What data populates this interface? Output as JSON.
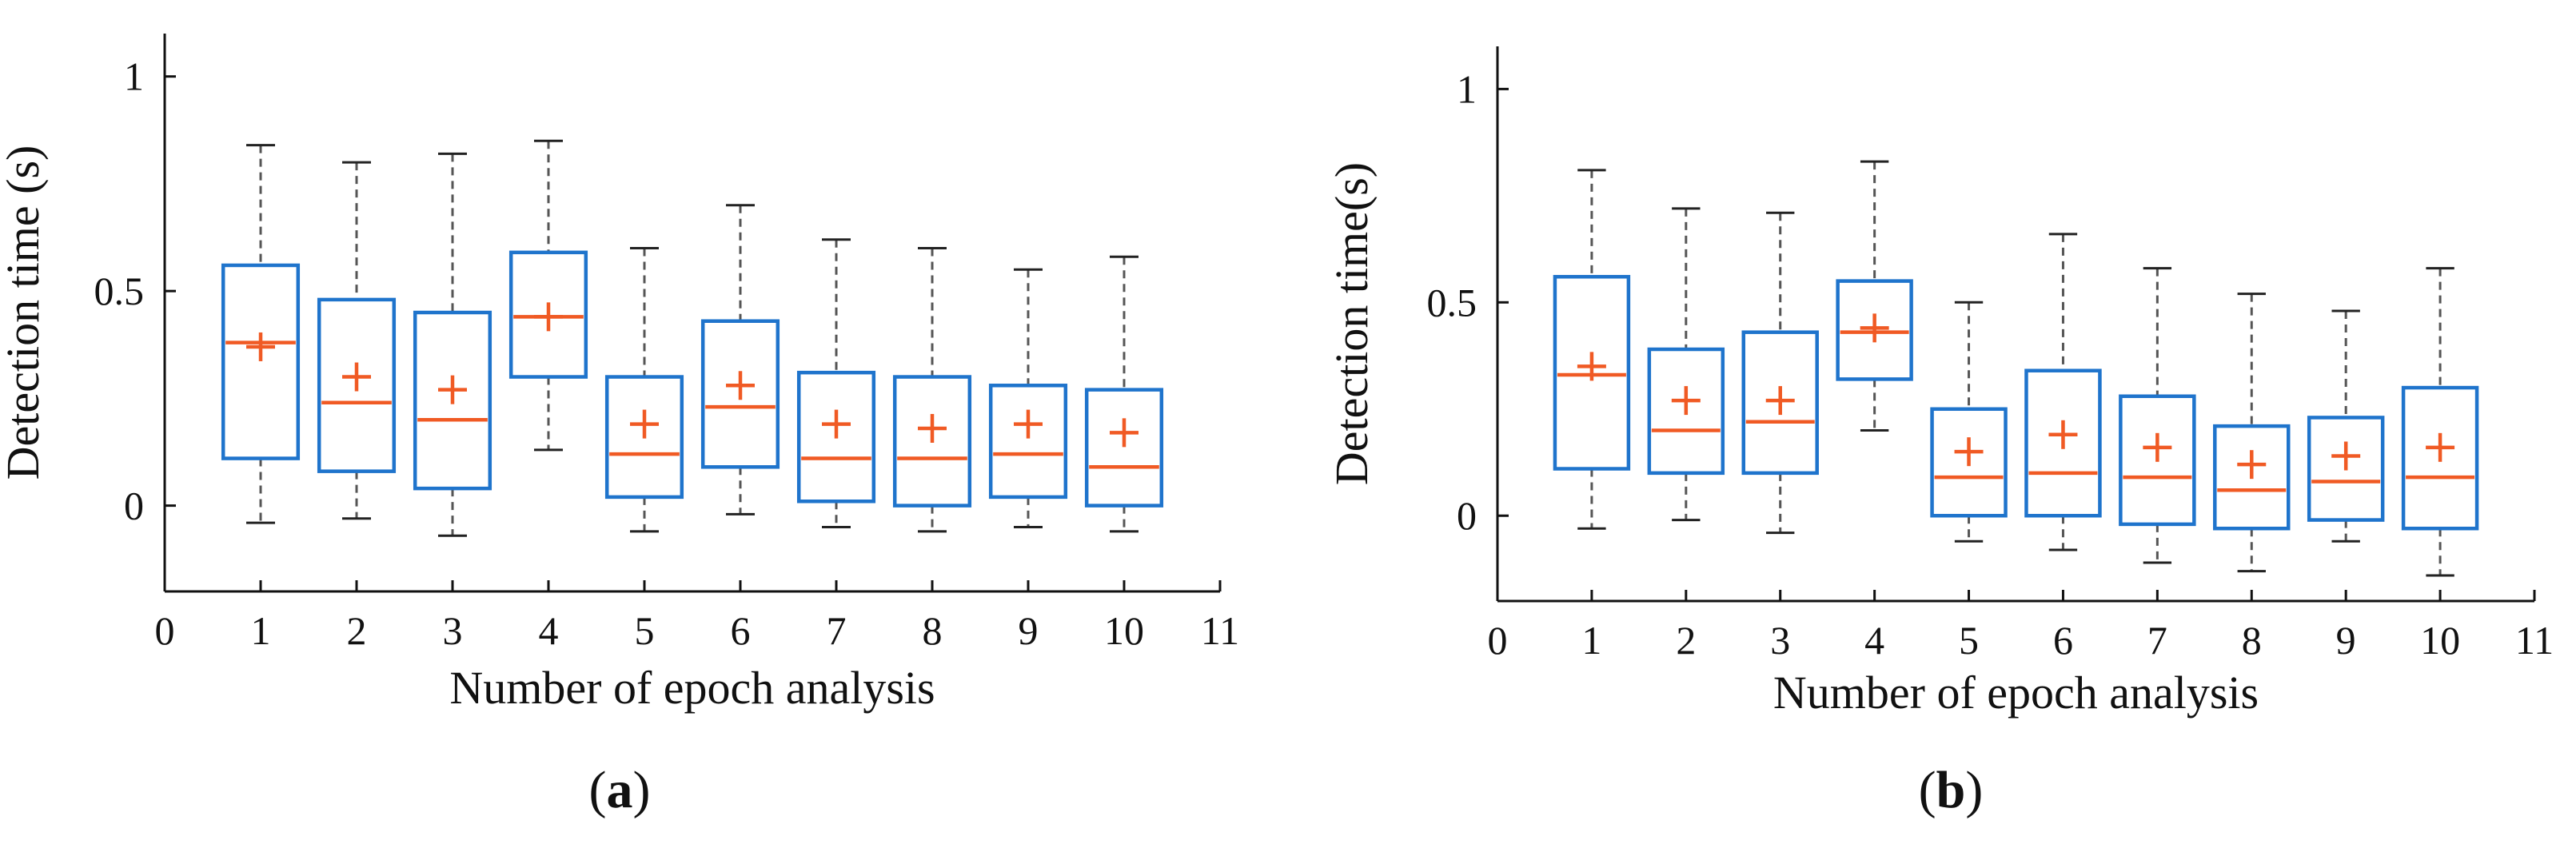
{
  "colors": {
    "box": "#1f74cc",
    "median": "#f05a24",
    "mean": "#f05a24",
    "whisker": "#555555",
    "axis": "#111111"
  },
  "chart_data": [
    {
      "type": "box",
      "panel_label": "a",
      "xlabel": "Number of epoch analysis",
      "ylabel": "Detection time (s)",
      "xlim": [
        0,
        11
      ],
      "ylim": [
        -0.2,
        1.1
      ],
      "xticks": [
        "0",
        "1",
        "2",
        "3",
        "4",
        "5",
        "6",
        "7",
        "8",
        "9",
        "10",
        "11"
      ],
      "yticks": [
        {
          "value": 0,
          "label": "0"
        },
        {
          "value": 0.5,
          "label": "0.5"
        },
        {
          "value": 1,
          "label": "1"
        }
      ],
      "grid": false,
      "boxes": [
        {
          "x": 1,
          "whisker_low": -0.04,
          "q1": 0.11,
          "median": 0.38,
          "q3": 0.56,
          "whisker_high": 0.84,
          "mean": 0.37
        },
        {
          "x": 2,
          "whisker_low": -0.03,
          "q1": 0.08,
          "median": 0.24,
          "q3": 0.48,
          "whisker_high": 0.8,
          "mean": 0.3
        },
        {
          "x": 3,
          "whisker_low": -0.07,
          "q1": 0.04,
          "median": 0.2,
          "q3": 0.45,
          "whisker_high": 0.82,
          "mean": 0.27
        },
        {
          "x": 4,
          "whisker_low": 0.13,
          "q1": 0.3,
          "median": 0.44,
          "q3": 0.59,
          "whisker_high": 0.85,
          "mean": 0.44
        },
        {
          "x": 5,
          "whisker_low": -0.06,
          "q1": 0.02,
          "median": 0.12,
          "q3": 0.3,
          "whisker_high": 0.6,
          "mean": 0.19
        },
        {
          "x": 6,
          "whisker_low": -0.02,
          "q1": 0.09,
          "median": 0.23,
          "q3": 0.43,
          "whisker_high": 0.7,
          "mean": 0.28
        },
        {
          "x": 7,
          "whisker_low": -0.05,
          "q1": 0.01,
          "median": 0.11,
          "q3": 0.31,
          "whisker_high": 0.62,
          "mean": 0.19
        },
        {
          "x": 8,
          "whisker_low": -0.06,
          "q1": 0.0,
          "median": 0.11,
          "q3": 0.3,
          "whisker_high": 0.6,
          "mean": 0.18
        },
        {
          "x": 9,
          "whisker_low": -0.05,
          "q1": 0.02,
          "median": 0.12,
          "q3": 0.28,
          "whisker_high": 0.55,
          "mean": 0.19
        },
        {
          "x": 10,
          "whisker_low": -0.06,
          "q1": 0.0,
          "median": 0.09,
          "q3": 0.27,
          "whisker_high": 0.58,
          "mean": 0.17
        }
      ]
    },
    {
      "type": "box",
      "panel_label": "b",
      "xlabel": "Number of epoch analysis",
      "ylabel": "Detection time(s)",
      "xlim": [
        0,
        11
      ],
      "ylim": [
        -0.2,
        1.1
      ],
      "xticks": [
        "0",
        "1",
        "2",
        "3",
        "4",
        "5",
        "6",
        "7",
        "8",
        "9",
        "10",
        "11"
      ],
      "yticks": [
        {
          "value": 0,
          "label": "0"
        },
        {
          "value": 0.5,
          "label": "0.5"
        },
        {
          "value": 1,
          "label": "1"
        }
      ],
      "grid": false,
      "boxes": [
        {
          "x": 1,
          "whisker_low": -0.03,
          "q1": 0.11,
          "median": 0.33,
          "q3": 0.56,
          "whisker_high": 0.81,
          "mean": 0.35
        },
        {
          "x": 2,
          "whisker_low": -0.01,
          "q1": 0.1,
          "median": 0.2,
          "q3": 0.39,
          "whisker_high": 0.72,
          "mean": 0.27
        },
        {
          "x": 3,
          "whisker_low": -0.04,
          "q1": 0.1,
          "median": 0.22,
          "q3": 0.43,
          "whisker_high": 0.71,
          "mean": 0.27
        },
        {
          "x": 4,
          "whisker_low": 0.2,
          "q1": 0.32,
          "median": 0.43,
          "q3": 0.55,
          "whisker_high": 0.83,
          "mean": 0.44
        },
        {
          "x": 5,
          "whisker_low": -0.06,
          "q1": 0.0,
          "median": 0.09,
          "q3": 0.25,
          "whisker_high": 0.5,
          "mean": 0.15
        },
        {
          "x": 6,
          "whisker_low": -0.08,
          "q1": 0.0,
          "median": 0.1,
          "q3": 0.34,
          "whisker_high": 0.66,
          "mean": 0.19
        },
        {
          "x": 7,
          "whisker_low": -0.11,
          "q1": -0.02,
          "median": 0.09,
          "q3": 0.28,
          "whisker_high": 0.58,
          "mean": 0.16
        },
        {
          "x": 8,
          "whisker_low": -0.13,
          "q1": -0.03,
          "median": 0.06,
          "q3": 0.21,
          "whisker_high": 0.52,
          "mean": 0.12
        },
        {
          "x": 9,
          "whisker_low": -0.06,
          "q1": -0.01,
          "median": 0.08,
          "q3": 0.23,
          "whisker_high": 0.48,
          "mean": 0.14
        },
        {
          "x": 10,
          "whisker_low": -0.14,
          "q1": -0.03,
          "median": 0.09,
          "q3": 0.3,
          "whisker_high": 0.58,
          "mean": 0.16
        }
      ]
    }
  ]
}
